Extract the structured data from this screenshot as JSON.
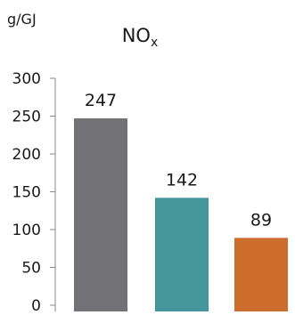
{
  "chart_data": {
    "type": "bar",
    "title": "NO",
    "title_subscript": "x",
    "ylabel": "g/GJ",
    "xlabel": "",
    "categories": [
      "",
      "",
      ""
    ],
    "values": [
      247,
      142,
      89
    ],
    "data_labels": [
      "247",
      "142",
      "89"
    ],
    "bar_colors": [
      "#727175",
      "#44969c",
      "#cc6c2d"
    ],
    "ylim": [
      0,
      300
    ],
    "yticks": [
      0,
      50,
      100,
      150,
      200,
      250,
      300
    ],
    "grid": false,
    "legend": "none"
  }
}
